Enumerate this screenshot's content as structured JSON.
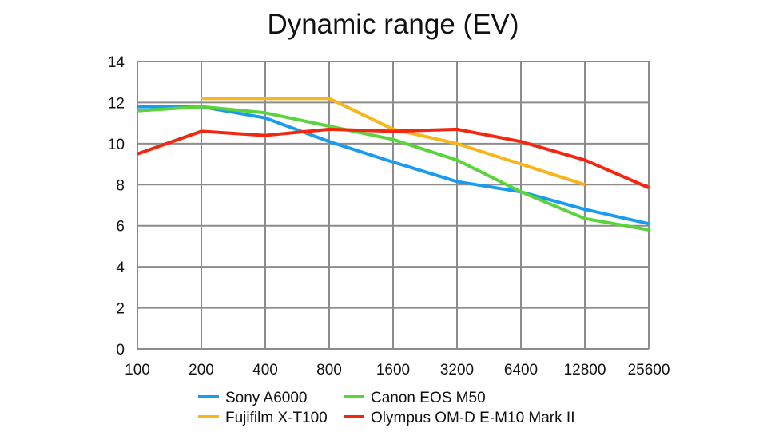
{
  "chart_data": {
    "type": "line",
    "title": "Dynamic range (EV)",
    "xlabel": "",
    "ylabel": "",
    "categories": [
      "100",
      "200",
      "400",
      "800",
      "1600",
      "3200",
      "6400",
      "12800",
      "25600"
    ],
    "yticks": [
      "0",
      "2",
      "4",
      "6",
      "8",
      "10",
      "12",
      "14"
    ],
    "ylim": [
      0,
      14
    ],
    "grid": true,
    "legend_position": "bottom",
    "series": [
      {
        "name": "Sony A6000",
        "color": "#1a9bf0",
        "values": [
          11.8,
          11.8,
          11.25,
          10.1,
          9.1,
          8.15,
          7.65,
          6.8,
          6.1
        ]
      },
      {
        "name": "Canon EOS M50",
        "color": "#5ad43a",
        "values": [
          11.6,
          11.8,
          11.5,
          10.85,
          10.2,
          9.2,
          7.65,
          6.35,
          5.8
        ]
      },
      {
        "name": "Fujifilm X-T100",
        "color": "#f9b51a",
        "values": [
          null,
          12.2,
          12.2,
          12.2,
          10.7,
          10.0,
          9.0,
          8.0,
          null
        ]
      },
      {
        "name": "Olympus OM-D E-M10 Mark II",
        "color": "#f5260f",
        "values": [
          9.5,
          10.6,
          10.4,
          10.7,
          10.6,
          10.7,
          10.1,
          9.2,
          7.85
        ]
      }
    ]
  }
}
